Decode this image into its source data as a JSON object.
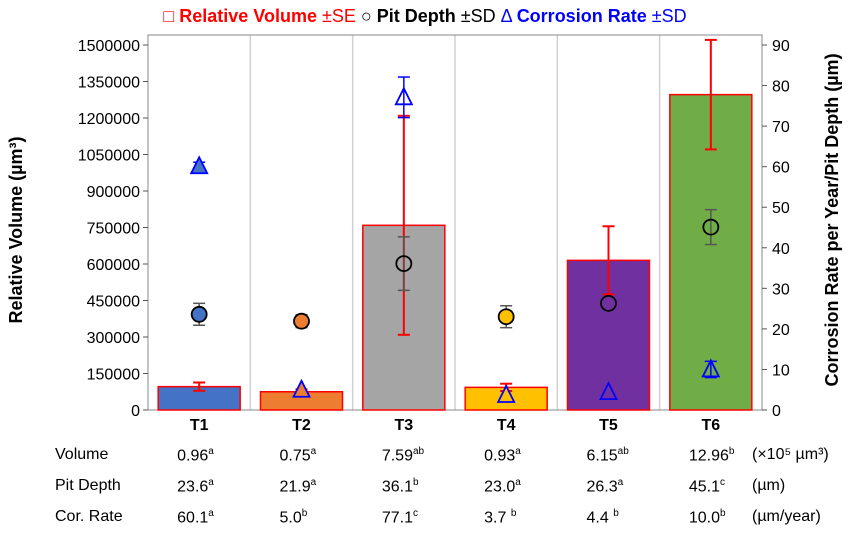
{
  "chart_data": {
    "type": "bar",
    "categories": [
      "T1",
      "T2",
      "T3",
      "T4",
      "T5",
      "T6"
    ],
    "legend": [
      {
        "symbol": "□",
        "name": "Relative Volume",
        "err": "±SE",
        "color": "#ff0000"
      },
      {
        "symbol": "○",
        "name": "Pit Depth",
        "err": "±SD",
        "color": "#000000"
      },
      {
        "symbol": "Δ",
        "name": "Corrosion Rate",
        "err": "±SD",
        "color": "#0000ff"
      }
    ],
    "ylabel_left": "Relative Volume (µm³)",
    "ylabel_right": "Corrosion Rate per Year/Pit Depth (µm)",
    "ylim_left": [
      0,
      1500000
    ],
    "yticks_left": [
      "0",
      "150000",
      "300000",
      "450000",
      "600000",
      "750000",
      "900000",
      "1050000",
      "1200000",
      "1350000",
      "1500000"
    ],
    "ylim_right": [
      0,
      90
    ],
    "yticks_right": [
      "0",
      "10",
      "20",
      "30",
      "40",
      "50",
      "60",
      "70",
      "80",
      "90"
    ],
    "bar_colors": [
      "#4472c4",
      "#ed7d31",
      "#a5a5a5",
      "#ffc000",
      "#7030a0",
      "#70ad47"
    ],
    "series": [
      {
        "name": "Relative Volume",
        "axis": "left",
        "values": [
          96000,
          75000,
          759000,
          93000,
          615000,
          1296000
        ],
        "err": [
          17000,
          10000,
          450000,
          15000,
          140000,
          225000
        ]
      },
      {
        "name": "Pit Depth",
        "axis": "right",
        "values": [
          23.6,
          21.9,
          36.1,
          23.0,
          26.3,
          45.1
        ],
        "err": [
          2.7,
          1.6,
          6.6,
          2.7,
          0,
          4.3
        ]
      },
      {
        "name": "Corrosion Rate",
        "axis": "right",
        "values": [
          60.1,
          5.0,
          77.1,
          3.7,
          4.4,
          10.0
        ],
        "err": [
          1.0,
          0,
          5.0,
          0,
          0,
          2.0
        ]
      }
    ],
    "filled_markers": [
      true,
      true,
      false,
      true,
      false,
      false
    ]
  },
  "table": {
    "rows": [
      {
        "label": "Volume",
        "values": [
          "0.96",
          "0.75",
          "7.59",
          "0.93",
          "6.15",
          "12.96"
        ],
        "sups": [
          "a",
          "a",
          "ab",
          "a",
          "ab",
          "b"
        ],
        "unit": "(×10⁵ µm³)"
      },
      {
        "label": "Pit Depth",
        "values": [
          "23.6",
          "21.9",
          "36.1",
          "23.0",
          "26.3",
          "45.1"
        ],
        "sups": [
          "a",
          "a",
          "b",
          "a",
          "a",
          "c"
        ],
        "unit": "(µm)"
      },
      {
        "label": "Cor. Rate",
        "values": [
          "60.1",
          "5.0",
          "77.1",
          "3.7 ",
          "4.4 ",
          "10.0"
        ],
        "sups": [
          "a",
          "b",
          "c",
          "b",
          "b",
          "b"
        ],
        "unit": "(µm/year)"
      }
    ]
  }
}
